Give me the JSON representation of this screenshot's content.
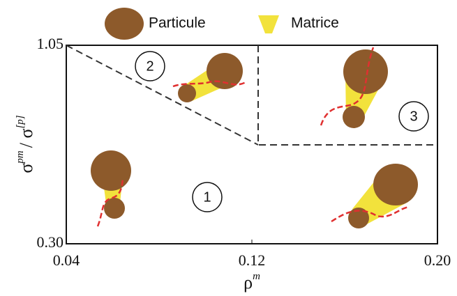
{
  "legend": [
    {
      "label": "Particule"
    },
    {
      "label": "Matrice"
    }
  ],
  "axes": {
    "x": {
      "label": {
        "base": "ρ",
        "sup": "m"
      },
      "lim": [
        0.04,
        0.2
      ],
      "ticks": [
        0.04,
        0.12,
        {
          "value": 0.2,
          "label": "0.20"
        }
      ]
    },
    "y": {
      "label": {
        "base1": "σ",
        "sup1": "pm",
        "base2": "/ σ",
        "sup2": "[p]"
      },
      "lim": [
        0.3,
        1.05
      ],
      "ticks": [
        {
          "value": 0.3,
          "label": "0.30"
        },
        1.05
      ]
    }
  },
  "regions": [
    {
      "label": "1"
    },
    {
      "label": "2"
    },
    {
      "label": "3"
    }
  ]
}
